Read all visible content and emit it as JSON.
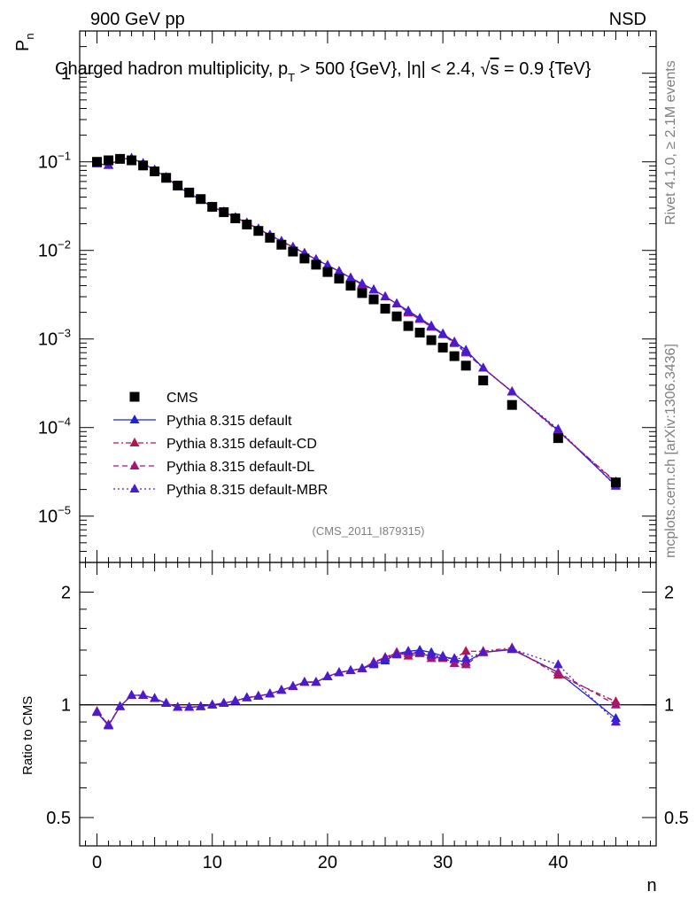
{
  "header": {
    "left": "900 GeV pp",
    "right": "NSD"
  },
  "side_labels": {
    "rivet": "Rivet 4.1.0, ≥ 2.1M events",
    "mcplots": "mcplots.cern.ch [arXiv:1306.3436]"
  },
  "analysis_id": "(CMS_2011_I879315)",
  "colors": {
    "cms": "#000000",
    "default": "#1f25d2",
    "cd": "#b0174f",
    "dl": "#a3177a",
    "mbr": "#4a1bd0"
  },
  "chart_data": [
    {
      "type": "scatter",
      "title": "Charged hadron multiplicity, p_T > 500 {GeV}, |η| < 2.4, √s = 0.9 {TeV}",
      "title_parts": {
        "t1": "Charged hadron multiplicity, p",
        "t_sub": "T",
        "t2": " > 500 {GeV}, |η| < 2.4, ",
        "t_sqrt": "√",
        "t_s": "s",
        "t3": " = 0.9 {TeV}"
      },
      "ylabel": "P",
      "ylabel_sub": "n",
      "yscale": "log",
      "ylim": [
        3e-06,
        3
      ],
      "xlim": [
        -1.5,
        48.5
      ],
      "yticks": [
        {
          "value": 1,
          "base": "1",
          "exp": ""
        },
        {
          "value": 0.1,
          "base": "10",
          "exp": "−1"
        },
        {
          "value": 0.01,
          "base": "10",
          "exp": "−2"
        },
        {
          "value": 0.001,
          "base": "10",
          "exp": "−3"
        },
        {
          "value": 0.0001,
          "base": "10",
          "exp": "−4"
        },
        {
          "value": 1e-05,
          "base": "10",
          "exp": "−5"
        }
      ],
      "x": [
        0,
        1,
        2,
        3,
        4,
        5,
        6,
        7,
        8,
        9,
        10,
        11,
        12,
        13,
        14,
        15,
        16,
        17,
        18,
        19,
        20,
        21,
        22,
        23,
        24,
        25,
        26,
        27,
        28,
        29,
        30,
        31,
        32,
        33.5,
        36,
        40,
        45
      ],
      "series": [
        {
          "name": "CMS",
          "color_key": "cms",
          "marker": "square",
          "line": "none",
          "values": [
            0.1,
            0.104,
            0.108,
            0.104,
            0.091,
            0.078,
            0.066,
            0.054,
            0.045,
            0.038,
            0.031,
            0.027,
            0.023,
            0.0196,
            0.0166,
            0.0139,
            0.0116,
            0.0097,
            0.0081,
            0.0069,
            0.0057,
            0.0048,
            0.004,
            0.0033,
            0.0028,
            0.0022,
            0.0018,
            0.0014,
            0.00118,
            0.00097,
            0.0008,
            0.00064,
            0.0005,
            0.00034,
            0.00018,
            7.6e-05,
            2.4e-05
          ]
        },
        {
          "name": "Pythia 8.315 default",
          "color_key": "default",
          "marker": "triangle",
          "line": "solid",
          "values": [
            0.0955,
            0.0915,
            0.107,
            0.11,
            0.096,
            0.081,
            0.067,
            0.053,
            0.044,
            0.0373,
            0.031,
            0.0273,
            0.0236,
            0.0205,
            0.0175,
            0.0149,
            0.0127,
            0.0109,
            0.0093,
            0.0079,
            0.0068,
            0.0058,
            0.0049,
            0.0042,
            0.0036,
            0.003,
            0.0025,
            0.00208,
            0.00172,
            0.00141,
            0.00115,
            0.00093,
            0.00075,
            0.00047,
            0.000253,
            9.3e-05,
            2.22e-05
          ]
        },
        {
          "name": "Pythia 8.315 default-CD",
          "color_key": "cd",
          "marker": "triangle",
          "line": "dashdot",
          "values": [
            0.096,
            0.092,
            0.107,
            0.11,
            0.096,
            0.081,
            0.067,
            0.053,
            0.044,
            0.0373,
            0.031,
            0.0273,
            0.0236,
            0.0205,
            0.0175,
            0.0149,
            0.0127,
            0.0109,
            0.0093,
            0.0079,
            0.0068,
            0.0058,
            0.0049,
            0.0041,
            0.0036,
            0.003,
            0.0025,
            0.00197,
            0.00167,
            0.00136,
            0.00113,
            0.00092,
            0.0007,
            0.00047,
            0.000255,
            9e-05,
            2.45e-05
          ]
        },
        {
          "name": "Pythia 8.315 default-DL",
          "color_key": "dl",
          "marker": "triangle",
          "line": "dashed",
          "values": [
            0.096,
            0.092,
            0.107,
            0.11,
            0.096,
            0.081,
            0.067,
            0.053,
            0.044,
            0.0373,
            0.031,
            0.0273,
            0.0236,
            0.0205,
            0.0175,
            0.0149,
            0.0127,
            0.0109,
            0.0093,
            0.0079,
            0.0068,
            0.0058,
            0.0049,
            0.0041,
            0.0036,
            0.003,
            0.0025,
            0.002,
            0.00167,
            0.00137,
            0.00112,
            0.00089,
            0.0007,
            0.00047,
            0.000254,
            9.2e-05,
            2.38e-05
          ]
        },
        {
          "name": "Pythia 8.315 default-MBR",
          "color_key": "mbr",
          "marker": "triangle",
          "line": "dotted",
          "values": [
            0.0955,
            0.0915,
            0.107,
            0.11,
            0.096,
            0.081,
            0.067,
            0.053,
            0.044,
            0.0373,
            0.031,
            0.0273,
            0.0236,
            0.0205,
            0.0175,
            0.0149,
            0.0127,
            0.0109,
            0.0093,
            0.0079,
            0.0068,
            0.0058,
            0.0049,
            0.0042,
            0.0036,
            0.003,
            0.0025,
            0.00205,
            0.0017,
            0.00139,
            0.00113,
            0.00091,
            0.00072,
            0.00047,
            0.000253,
            9.6e-05,
            2.18e-05
          ]
        }
      ],
      "legend": "left"
    },
    {
      "type": "line",
      "ylabel": "Ratio to CMS",
      "yscale": "log",
      "ylim": [
        0.42,
        2.4
      ],
      "xlim": [
        -1.5,
        48.5
      ],
      "xlabel": "n",
      "xticks": [
        0,
        10,
        20,
        30,
        40
      ],
      "xticklabels": [
        "0",
        "10",
        "20",
        "30",
        "40"
      ],
      "yticks": [
        0.5,
        1,
        2
      ],
      "yticklabels": [
        "0.5",
        "1",
        "2"
      ],
      "reference": 1,
      "x": [
        0,
        1,
        2,
        3,
        4,
        5,
        6,
        7,
        8,
        9,
        10,
        11,
        12,
        13,
        14,
        15,
        16,
        17,
        18,
        19,
        20,
        21,
        22,
        23,
        24,
        25,
        26,
        27,
        28,
        29,
        30,
        31,
        32,
        33.5,
        36,
        40,
        45
      ],
      "series": [
        {
          "name": "Pythia 8.315 default",
          "color_key": "default",
          "line": "solid",
          "values": [
            0.955,
            0.88,
            0.99,
            1.06,
            1.06,
            1.04,
            1.01,
            0.985,
            0.985,
            0.99,
            1.0,
            1.01,
            1.025,
            1.045,
            1.055,
            1.07,
            1.095,
            1.12,
            1.15,
            1.15,
            1.19,
            1.22,
            1.235,
            1.25,
            1.28,
            1.31,
            1.37,
            1.39,
            1.4,
            1.38,
            1.35,
            1.32,
            1.3,
            1.38,
            1.405,
            1.22,
            0.92
          ]
        },
        {
          "name": "Pythia 8.315 default-CD",
          "color_key": "cd",
          "line": "dashdot",
          "values": [
            0.96,
            0.885,
            0.99,
            1.06,
            1.06,
            1.04,
            1.01,
            0.985,
            0.985,
            0.99,
            1.0,
            1.01,
            1.025,
            1.045,
            1.055,
            1.07,
            1.095,
            1.12,
            1.15,
            1.15,
            1.19,
            1.22,
            1.235,
            1.25,
            1.3,
            1.33,
            1.38,
            1.35,
            1.37,
            1.35,
            1.33,
            1.33,
            1.39,
            1.39,
            1.42,
            1.2,
            1.02
          ]
        },
        {
          "name": "Pythia 8.315 default-DL",
          "color_key": "dl",
          "line": "dashed",
          "values": [
            0.96,
            0.885,
            0.99,
            1.06,
            1.06,
            1.04,
            1.01,
            0.985,
            0.985,
            0.99,
            1.0,
            1.01,
            1.025,
            1.045,
            1.055,
            1.07,
            1.095,
            1.12,
            1.15,
            1.15,
            1.19,
            1.22,
            1.235,
            1.25,
            1.3,
            1.34,
            1.38,
            1.37,
            1.38,
            1.33,
            1.34,
            1.29,
            1.28,
            1.38,
            1.41,
            1.22,
            1.0
          ]
        },
        {
          "name": "Pythia 8.315 default-MBR",
          "color_key": "mbr",
          "line": "dotted",
          "values": [
            0.955,
            0.88,
            0.99,
            1.06,
            1.06,
            1.04,
            1.01,
            0.985,
            0.985,
            0.99,
            1.0,
            1.01,
            1.025,
            1.045,
            1.055,
            1.07,
            1.095,
            1.12,
            1.15,
            1.15,
            1.19,
            1.22,
            1.235,
            1.25,
            1.29,
            1.33,
            1.36,
            1.39,
            1.38,
            1.36,
            1.34,
            1.33,
            1.33,
            1.38,
            1.41,
            1.28,
            0.9
          ]
        }
      ]
    }
  ]
}
